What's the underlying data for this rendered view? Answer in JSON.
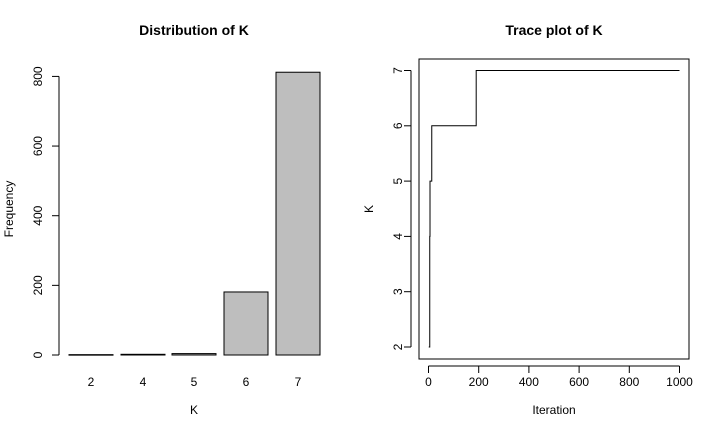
{
  "chart_data": [
    {
      "type": "bar",
      "title": "Distribution of K",
      "xlabel": "K",
      "ylabel": "Frequency",
      "categories": [
        "2",
        "4",
        "5",
        "6",
        "7"
      ],
      "values": [
        1,
        2,
        4,
        181,
        812
      ],
      "yticks": [
        "0",
        "200",
        "400",
        "600",
        "800"
      ],
      "ylim": [
        0,
        850
      ],
      "bar_color": "#bebebe",
      "grid": false
    },
    {
      "type": "line",
      "title": "Trace plot of K",
      "xlabel": "Iteration",
      "ylabel": "K",
      "xticks": [
        "0",
        "200",
        "400",
        "600",
        "800",
        "1000"
      ],
      "yticks": [
        "2",
        "3",
        "4",
        "5",
        "6",
        "7"
      ],
      "xlim": [
        0,
        1000
      ],
      "ylim": [
        2,
        7
      ],
      "series": [
        {
          "step": true,
          "x": [
            1,
            2,
            5,
            6,
            12,
            13,
            189,
            190,
            1000
          ],
          "y": [
            2,
            2,
            4,
            5,
            5,
            6,
            6,
            7,
            7
          ]
        }
      ],
      "line_color": "#000000",
      "grid": false
    }
  ]
}
